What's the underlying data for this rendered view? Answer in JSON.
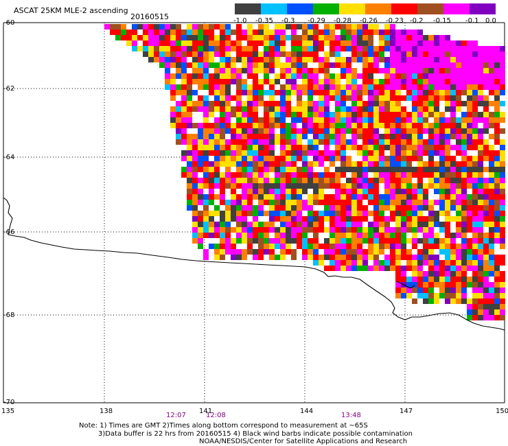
{
  "header": {
    "title": "ASCAT 25KM MLE-2 ascending",
    "date": "20160515"
  },
  "colorbar": {
    "colors": [
      "#404040",
      "#00c0ff",
      "#0050ff",
      "#00b000",
      "#ffe000",
      "#ff8000",
      "#ff0000",
      "#a05020",
      "#ff00ff",
      "#8000c0"
    ],
    "labels": [
      "-1.0",
      "-0.35",
      "-0.3",
      "-0.29",
      "-0.28",
      "-0.26",
      "-0.23",
      "-0.2",
      "-0.15",
      "-0.1",
      "0.0"
    ]
  },
  "axes": {
    "lat_labels": [
      "-60",
      "-62",
      "-64",
      "-66",
      "-68",
      "-70"
    ],
    "lon_labels": [
      "135",
      "138",
      "141",
      "144",
      "147",
      "150"
    ]
  },
  "pass_times": [
    "12:07",
    "12:08",
    "13:48"
  ],
  "notes": {
    "line1": "Note: 1) Times are GMT 2)Times along bottom correspond to measurement at ~65S",
    "line2": "3)Data buffer is 22 hrs from 20160515 4) Black wind barbs indicate possible contamination",
    "line3": "NOAA/NESDIS/Center for Satellite Applications and Research"
  }
}
